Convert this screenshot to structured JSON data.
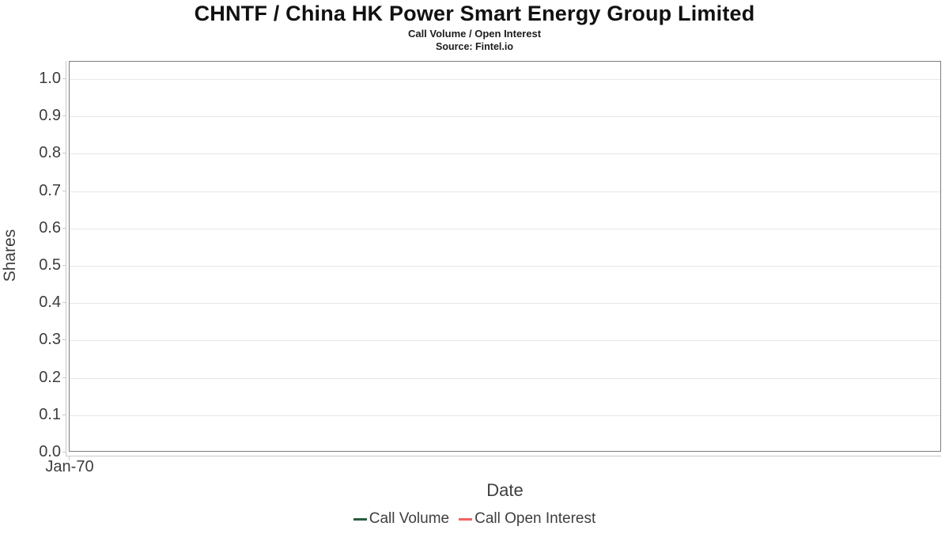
{
  "header": {
    "title": "CHNTF / China HK Power Smart Energy Group Limited",
    "subtitle": "Call Volume / Open Interest",
    "source": "Source: Fintel.io"
  },
  "chart_data": {
    "type": "line",
    "title": "CHNTF / China HK Power Smart Energy Group Limited",
    "subtitle": "Call Volume / Open Interest",
    "source": "Source: Fintel.io",
    "xlabel": "Date",
    "ylabel": "Shares",
    "ylim": [
      0.0,
      1.0
    ],
    "ytick_values": [
      0.0,
      0.1,
      0.2,
      0.3,
      0.4,
      0.5,
      0.6,
      0.7,
      0.8,
      0.9,
      1.0
    ],
    "ytick_labels": [
      "0.0",
      "0.1",
      "0.2",
      "0.3",
      "0.4",
      "0.5",
      "0.6",
      "0.7",
      "0.8",
      "0.9",
      "1.0"
    ],
    "xticks": [
      "Jan-70"
    ],
    "grid": true,
    "legend_position": "bottom",
    "series": [
      {
        "name": "Call Volume",
        "color": "#2a5c3f",
        "x": [],
        "values": []
      },
      {
        "name": "Call Open Interest",
        "color": "#f4625c",
        "x": [],
        "values": []
      }
    ]
  },
  "colors": {
    "plot_border": "#7f7f7f",
    "gridline": "#e7e7e7",
    "axis_line": "#c9c9c9",
    "text": "#3d3d3d",
    "title_text": "#111111"
  }
}
